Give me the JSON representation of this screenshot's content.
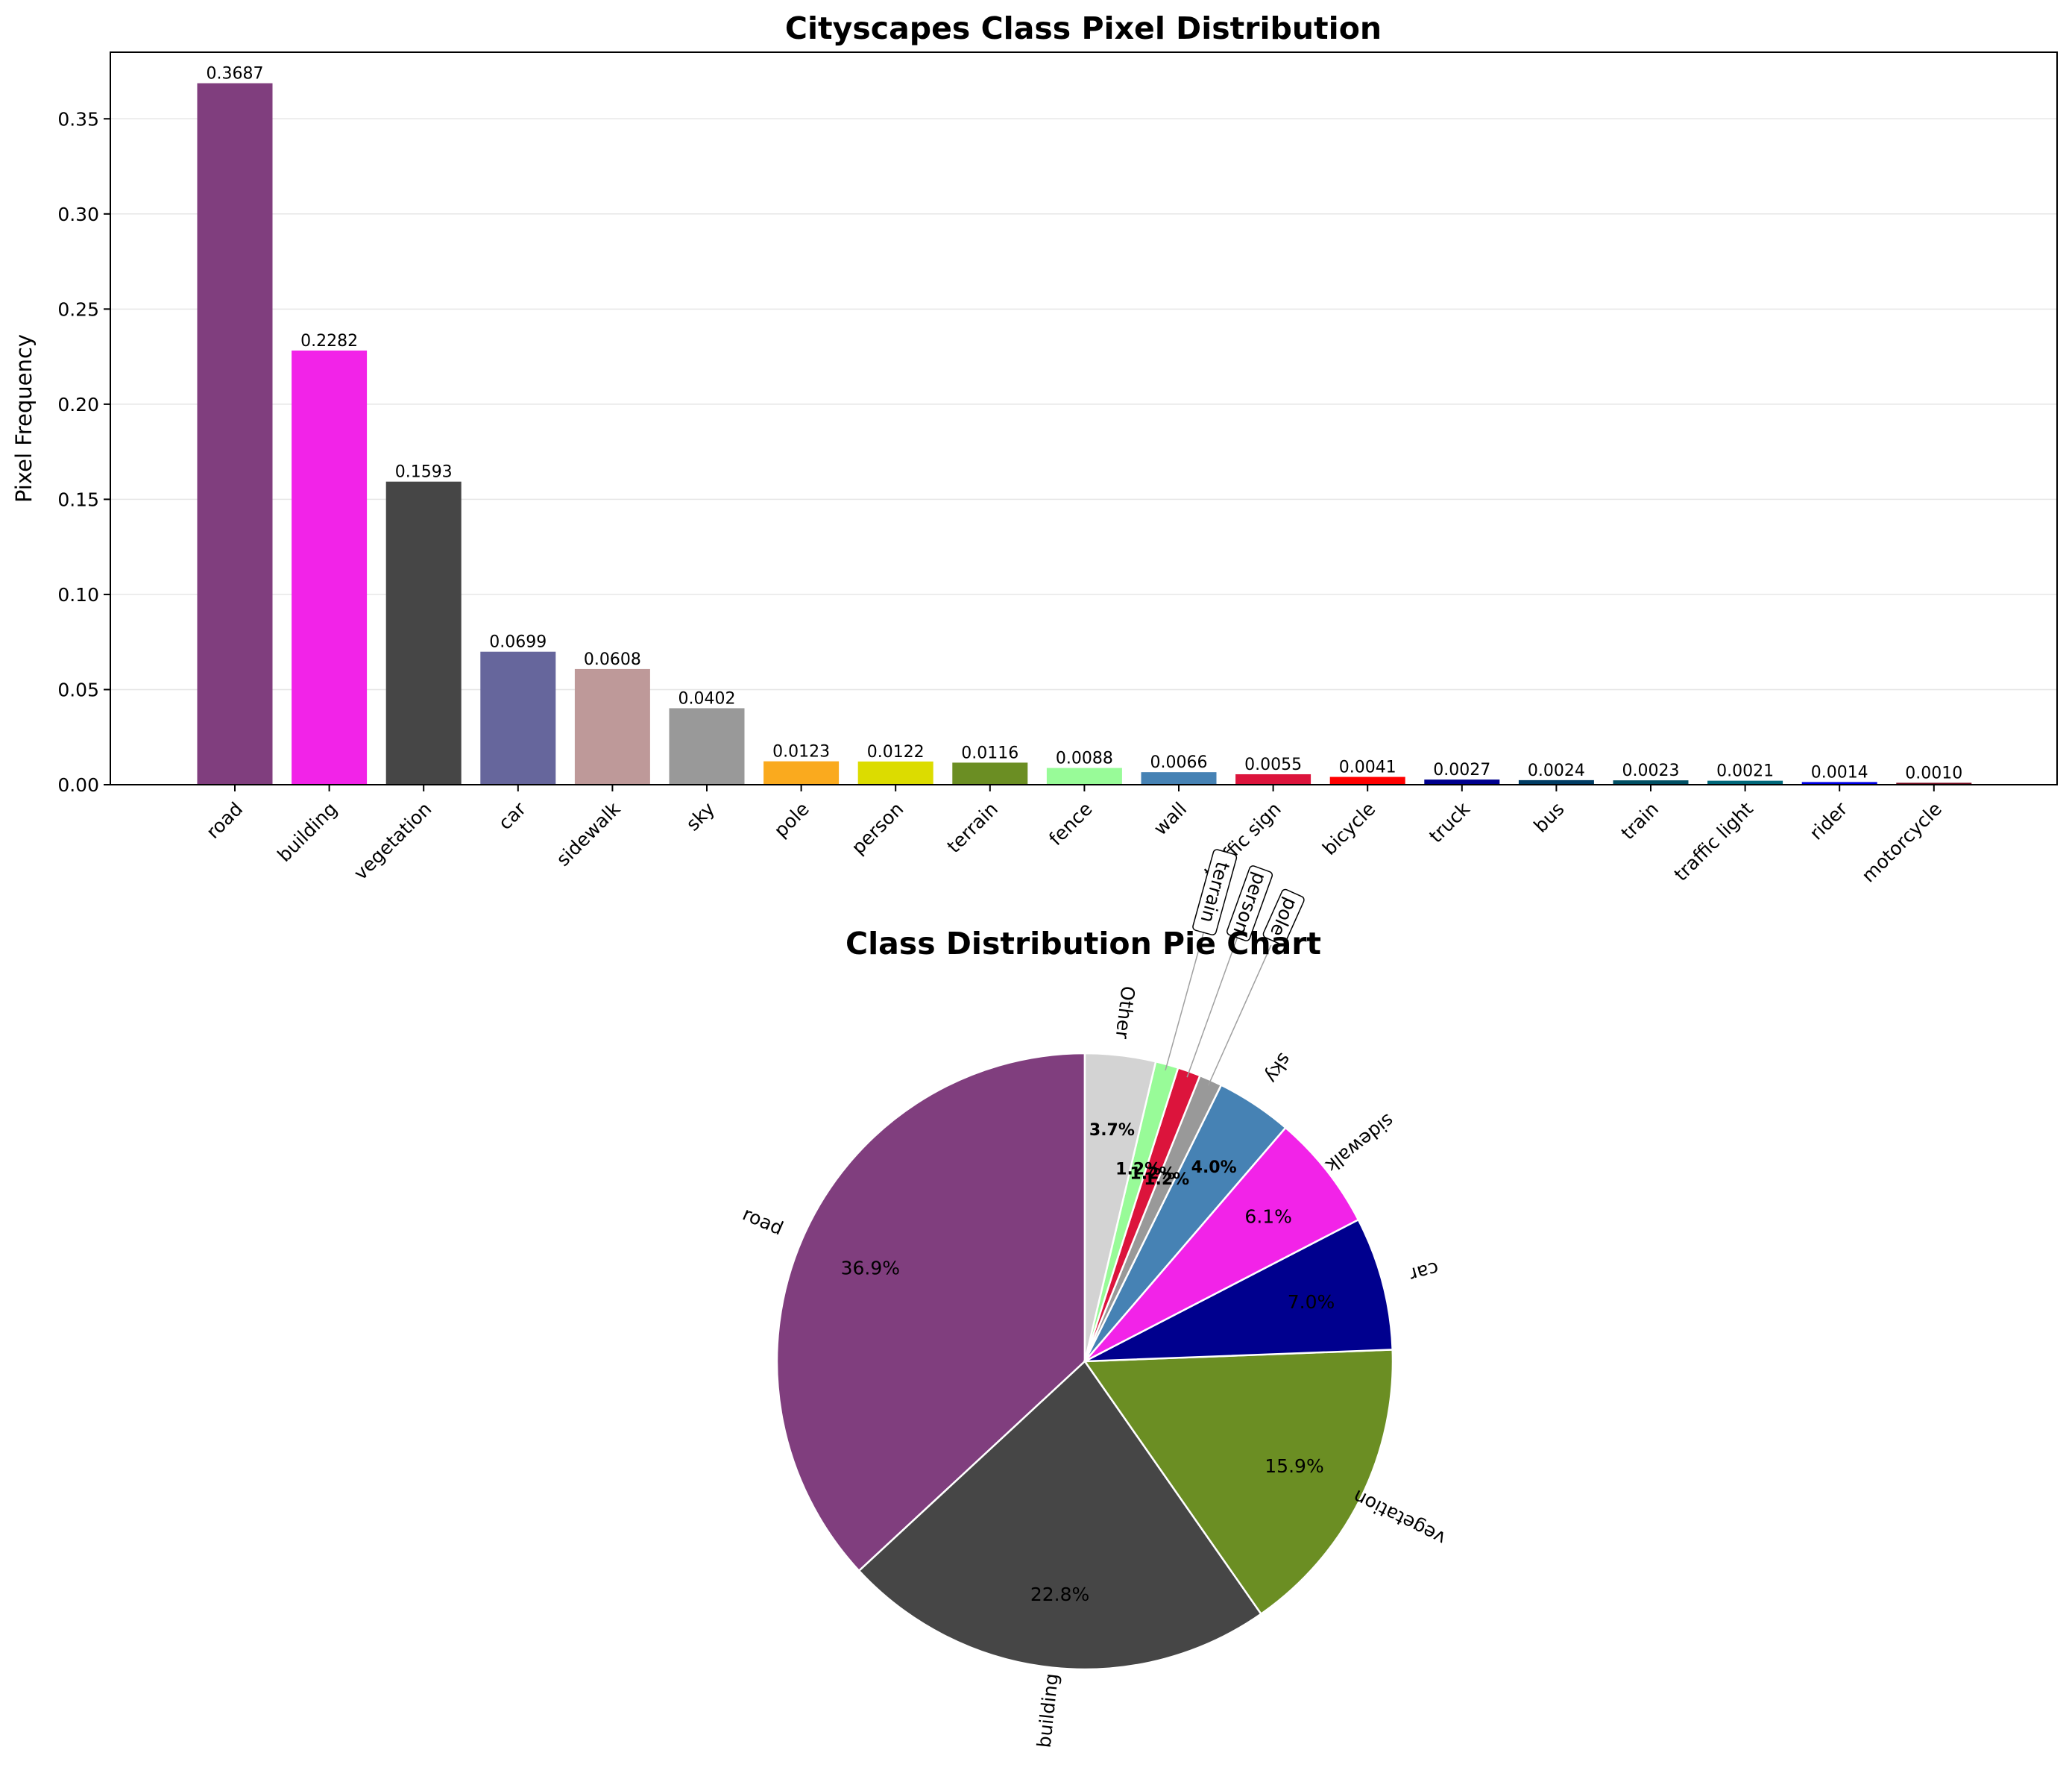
{
  "chart_data": [
    {
      "type": "bar",
      "title": "Cityscapes Class Pixel Distribution",
      "xlabel": "",
      "ylabel": "Pixel Frequency",
      "ylim": [
        0,
        0.385
      ],
      "yticks": [
        "0.00",
        "0.05",
        "0.10",
        "0.15",
        "0.20",
        "0.25",
        "0.30",
        "0.35"
      ],
      "grid": "y",
      "categories": [
        "road",
        "building",
        "vegetation",
        "car",
        "sidewalk",
        "sky",
        "pole",
        "person",
        "terrain",
        "fence",
        "wall",
        "traffic sign",
        "bicycle",
        "truck",
        "bus",
        "train",
        "traffic light",
        "rider",
        "motorcycle"
      ],
      "values": [
        0.3687,
        0.2282,
        0.1593,
        0.0699,
        0.0608,
        0.0402,
        0.0123,
        0.0122,
        0.0116,
        0.0088,
        0.0066,
        0.0055,
        0.0041,
        0.0027,
        0.0024,
        0.0023,
        0.0021,
        0.0014,
        0.001
      ],
      "value_labels": [
        "0.3687",
        "0.2282",
        "0.1593",
        "0.0699",
        "0.0608",
        "0.0402",
        "0.0123",
        "0.0122",
        "0.0116",
        "0.0088",
        "0.0066",
        "0.0055",
        "0.0041",
        "0.0027",
        "0.0024",
        "0.0023",
        "0.0021",
        "0.0014",
        "0.0010"
      ],
      "colors": [
        "#803e7e",
        "#f223e8",
        "#464646",
        "#66669c",
        "#be9999",
        "#999999",
        "#faaa1e",
        "#dcdc00",
        "#6b8e23",
        "#98fb98",
        "#4682b4",
        "#dc143c",
        "#ff0000",
        "#00008e",
        "#003c64",
        "#005064",
        "#00687a",
        "#0000e6",
        "#770b20"
      ]
    },
    {
      "type": "pie",
      "title": "Class Distribution Pie Chart",
      "slices": [
        {
          "label": "road",
          "value": 36.9,
          "pct": "36.9%",
          "color": "#803e7e"
        },
        {
          "label": "building",
          "value": 22.8,
          "pct": "22.8%",
          "color": "#464646"
        },
        {
          "label": "vegetation",
          "value": 15.9,
          "pct": "15.9%",
          "color": "#6b8e23"
        },
        {
          "label": "car",
          "value": 7.0,
          "pct": "7.0%",
          "color": "#00008e"
        },
        {
          "label": "sidewalk",
          "value": 6.1,
          "pct": "6.1%",
          "color": "#f223e8"
        },
        {
          "label": "sky",
          "value": 4.0,
          "pct": "4.0%",
          "color": "#4682b4"
        },
        {
          "label": "pole",
          "value": 1.2,
          "pct": "1.2%",
          "color": "#999999"
        },
        {
          "label": "person",
          "value": 1.2,
          "pct": "1.2%",
          "color": "#dc143c"
        },
        {
          "label": "terrain",
          "value": 1.2,
          "pct": "1.2%",
          "color": "#98fb98"
        },
        {
          "label": "Other",
          "value": 3.7,
          "pct": "3.7%",
          "color": "#d3d3d3"
        }
      ]
    }
  ]
}
